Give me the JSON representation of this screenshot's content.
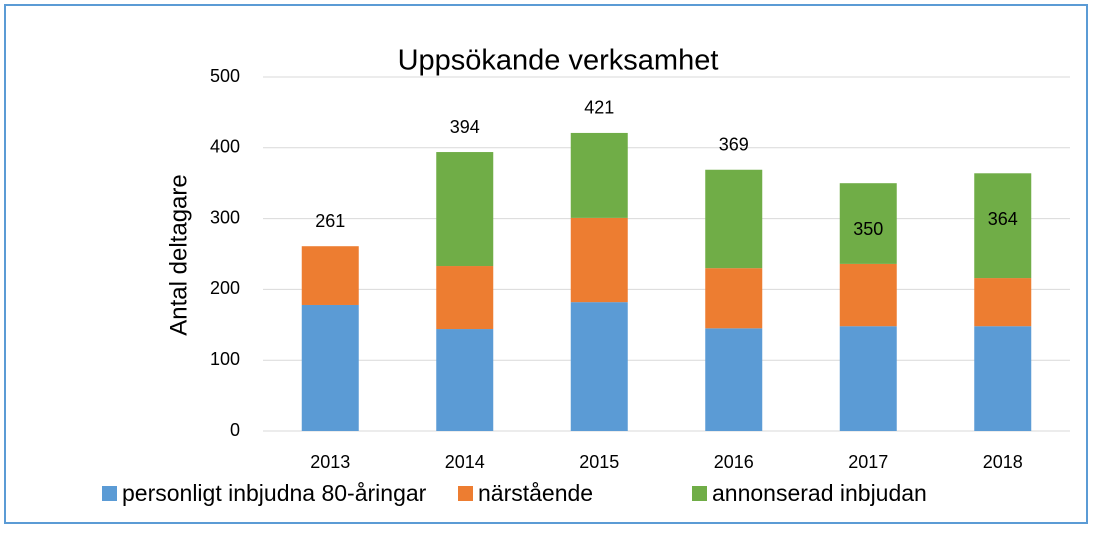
{
  "chart_data": {
    "type": "stacked_bar",
    "title": "Uppsökande verksamhet",
    "y_label": "Antal deltagare",
    "categories": [
      "2013",
      "2014",
      "2015",
      "2016",
      "2017",
      "2018"
    ],
    "series": [
      {
        "name": "personligt inbjudna 80-åringar",
        "color": "#5b9bd5",
        "values": [
          178,
          144,
          182,
          145,
          148,
          148
        ]
      },
      {
        "name": "närstående",
        "color": "#ed7d31",
        "values": [
          83,
          89,
          119,
          85,
          88,
          68
        ]
      },
      {
        "name": "annonserad inbjudan",
        "color": "#70ad47",
        "values": [
          0,
          161,
          120,
          139,
          114,
          148
        ]
      }
    ],
    "totals": [
      261,
      394,
      421,
      369,
      350,
      364
    ],
    "ylim": [
      0,
      500
    ],
    "yticks": [
      0,
      100,
      200,
      300,
      400,
      500
    ],
    "grid": true,
    "legend": "bottom"
  }
}
